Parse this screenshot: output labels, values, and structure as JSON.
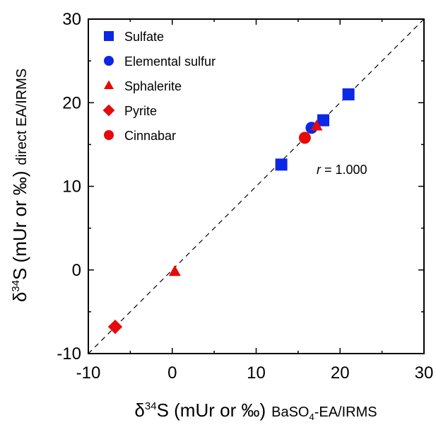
{
  "chart_data": {
    "type": "scatter",
    "xlim": [
      -10,
      30
    ],
    "ylim": [
      -10,
      30
    ],
    "x_ticks": [
      "-10",
      "0",
      "10",
      "20",
      "30"
    ],
    "y_ticks": [
      "-10",
      "0",
      "10",
      "20",
      "30"
    ],
    "grid": false,
    "legend_position": "top-left",
    "xlabel": {
      "delta": "δ",
      "mass": "34",
      "main": "S (mUr or ‰)",
      "method_pre": "BaSO",
      "method_sub": "4",
      "method_post": "-EA/IRMS"
    },
    "ylabel": {
      "delta": "δ",
      "mass": "34",
      "main": "S (mUr or ‰)",
      "method": "direct EA/IRMS"
    },
    "reference_line": {
      "style": "dashed",
      "from": [
        -10,
        -10
      ],
      "to": [
        30,
        30
      ]
    },
    "annotation": {
      "italic": "r",
      "rest": " = 1.000",
      "x": 17.2,
      "y": 12.0
    },
    "series": [
      {
        "name": "Sulfate",
        "marker": "square",
        "color": "#0a28e6",
        "points": [
          [
            13.0,
            12.6
          ],
          [
            18.0,
            17.9
          ],
          [
            21.0,
            21.0
          ]
        ]
      },
      {
        "name": "Elemental sulfur",
        "marker": "circle",
        "color": "#0a28e6",
        "points": [
          [
            16.6,
            17.0
          ]
        ]
      },
      {
        "name": "Sphalerite",
        "marker": "triangle",
        "color": "#e60a0a",
        "points": [
          [
            0.3,
            -0.2
          ],
          [
            17.2,
            17.2
          ]
        ]
      },
      {
        "name": "Pyrite",
        "marker": "diamond",
        "color": "#e60a0a",
        "points": [
          [
            -6.8,
            -6.8
          ]
        ]
      },
      {
        "name": "Cinnabar",
        "marker": "circle",
        "color": "#e60a0a",
        "points": [
          [
            15.8,
            15.8
          ]
        ]
      }
    ]
  }
}
